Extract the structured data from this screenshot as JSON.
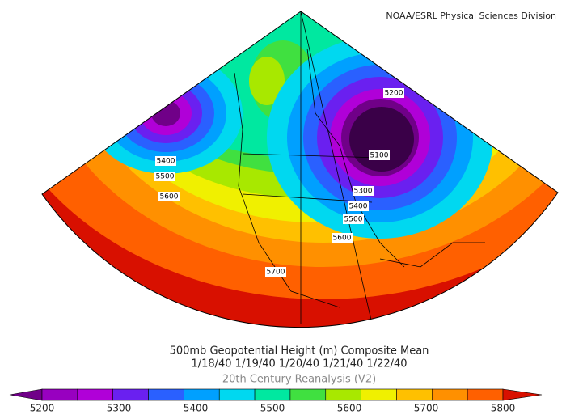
{
  "credit": "NOAA/ESRL Physical Sciences Division",
  "contour_labels": [
    "5200",
    "5100",
    "5400",
    "5500",
    "5600",
    "5300",
    "5400",
    "5500",
    "5600",
    "5700"
  ],
  "title": {
    "line1": "500mb Geopotential Height (m) Composite Mean",
    "line2": "1/18/40 1/19/40 1/20/40 1/21/40 1/22/40",
    "line3": "20th Century Reanalysis (V2)"
  },
  "colorbar": {
    "ticks": [
      5200,
      5300,
      5400,
      5500,
      5600,
      5700,
      5800
    ],
    "colors": [
      "#700088",
      "#9800c0",
      "#b000d8",
      "#6a20f0",
      "#2a60ff",
      "#00a0ff",
      "#00d8f0",
      "#00e8a0",
      "#40e040",
      "#a8e800",
      "#f0f000",
      "#ffc000",
      "#ff9000",
      "#ff6000",
      "#d81000"
    ]
  }
}
